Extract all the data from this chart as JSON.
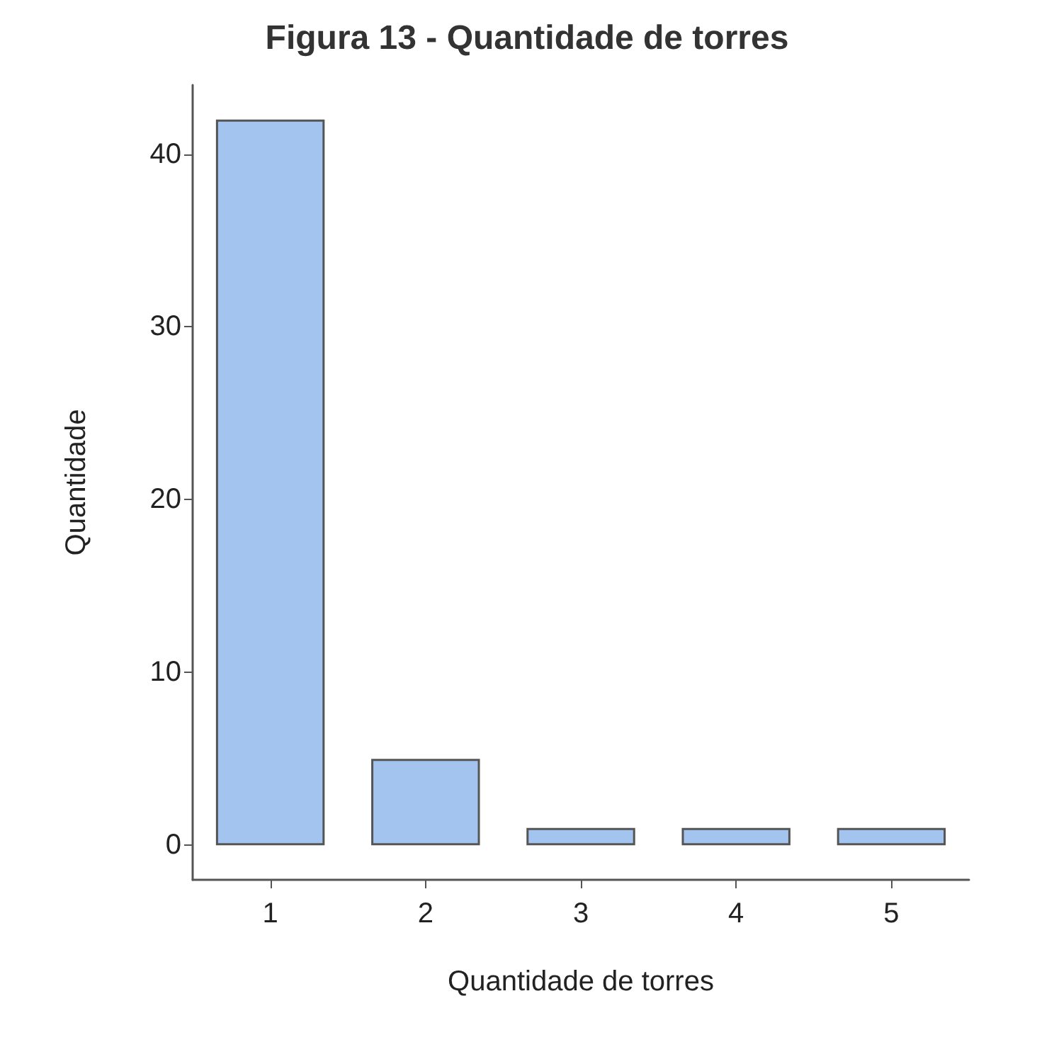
{
  "chart_data": {
    "type": "bar",
    "title": "Figura 13 - Quantidade de torres",
    "xlabel": "Quantidade de torres",
    "ylabel": "Quantidade",
    "categories": [
      "1",
      "2",
      "3",
      "4",
      "5"
    ],
    "values": [
      42,
      5,
      1,
      1,
      1
    ],
    "color": "#a4c4f0",
    "ylim": [
      -2,
      44
    ],
    "yticks": [
      0,
      10,
      20,
      30,
      40
    ],
    "grid": false
  }
}
